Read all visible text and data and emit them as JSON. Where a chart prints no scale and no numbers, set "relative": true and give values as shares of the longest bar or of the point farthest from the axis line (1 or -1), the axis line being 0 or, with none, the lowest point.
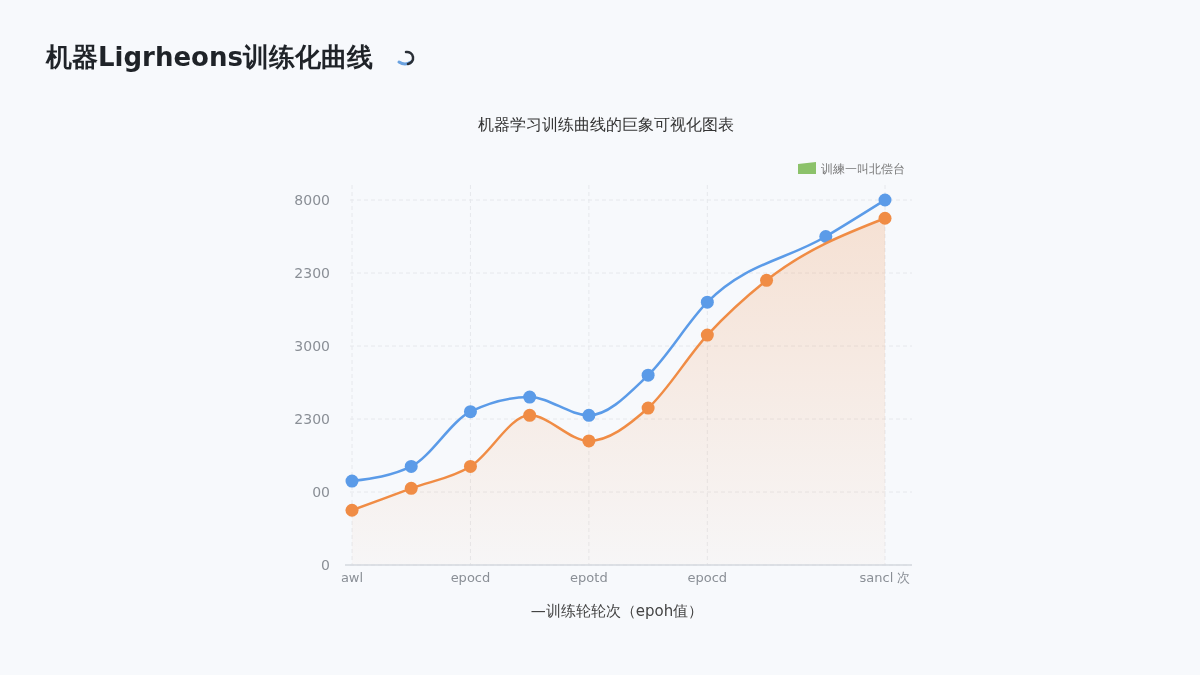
{
  "chart_data": {
    "type": "line",
    "title": "机器Ligrheons训练化曲线",
    "subtitle": "机器学习训练曲线的巨象可视化图表",
    "xlabel": "—训练轮轮次（epoh值）",
    "annotations": [
      "训練一叫北偿台",
      "0",
      "00",
      "2300",
      "3000",
      "2300",
      "8000"
    ],
    "categories": [
      "awl",
      null,
      "epocd",
      null,
      "epotd",
      null,
      "epocd",
      null,
      null,
      "sancl 次"
    ],
    "relative": true,
    "grid": true,
    "marker": "circle",
    "series": [
      {
        "color": "#5b9be8",
        "values": [
          0.23,
          0.27,
          0.42,
          0.46,
          0.41,
          0.52,
          0.72,
          null,
          0.9,
          1
        ]
      },
      {
        "type": "area",
        "color": "#f08c45",
        "values": [
          0.15,
          0.21,
          0.27,
          0.41,
          0.34,
          0.43,
          0.63,
          0.78,
          null,
          0.95
        ]
      }
    ]
  }
}
